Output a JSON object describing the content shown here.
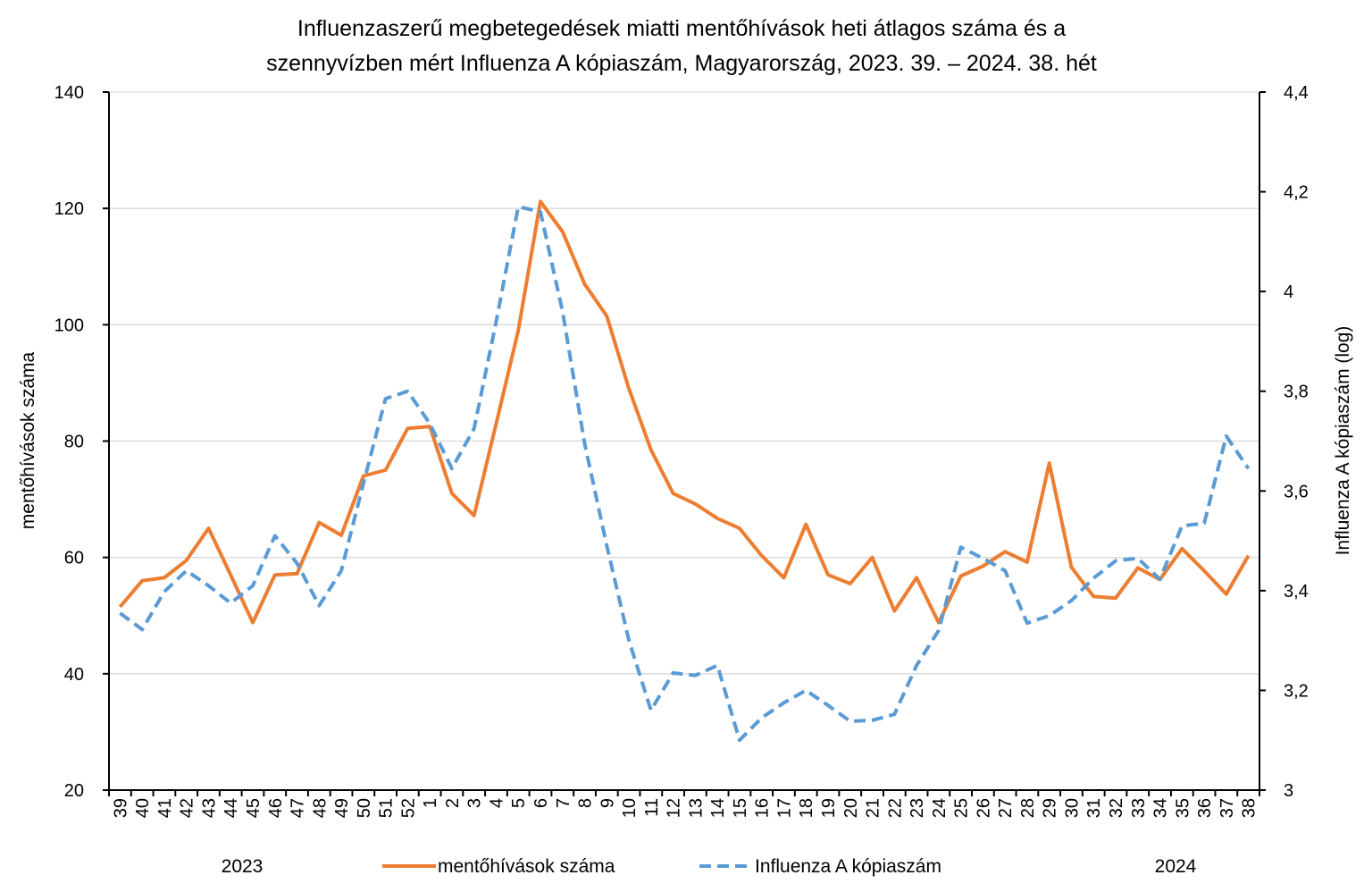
{
  "chart_data": {
    "type": "line",
    "title_line1": "Influenzaszerű megbetegedések miatti mentőhívások heti átlagos száma és a",
    "title_line2": "szennyvízben mért Influenza A kópiaszám, Magyarország, 2023. 39. – 2024. 38. hét",
    "ylabel_left": "mentőhívások száma",
    "ylabel_right": "Influenza A kópiaszám (log)",
    "ylim_left": [
      20,
      140
    ],
    "ylim_right": [
      3,
      4.4
    ],
    "yticks_left": [
      "20",
      "40",
      "60",
      "80",
      "100",
      "120",
      "140"
    ],
    "yticks_right": [
      "3",
      "3,2",
      "3,4",
      "3,6",
      "3,8",
      "4",
      "4,2",
      "4,4"
    ],
    "year_labels": [
      "2023",
      "2024"
    ],
    "categories": [
      "39",
      "40",
      "41",
      "42",
      "43",
      "44",
      "45",
      "46",
      "47",
      "48",
      "49",
      "50",
      "51",
      "52",
      "1",
      "2",
      "3",
      "4",
      "5",
      "6",
      "7",
      "8",
      "9",
      "10",
      "11",
      "12",
      "13",
      "14",
      "15",
      "16",
      "17",
      "18",
      "19",
      "20",
      "21",
      "22",
      "23",
      "24",
      "25",
      "26",
      "27",
      "28",
      "29",
      "30",
      "31",
      "32",
      "33",
      "34",
      "35",
      "36",
      "37",
      "38"
    ],
    "series": [
      {
        "name": "mentőhívások száma",
        "axis": "left",
        "color": "#ed7d31",
        "style": "solid",
        "values": [
          51.5,
          56,
          56.5,
          59.5,
          65,
          57,
          48.8,
          57,
          57.2,
          66,
          63.8,
          74,
          75,
          82.2,
          82.5,
          71,
          67.2,
          83,
          99,
          121.2,
          116,
          107,
          101.5,
          89,
          78.5,
          71,
          69.2,
          66.7,
          65,
          60.3,
          56.5,
          65.7,
          57,
          55.5,
          60,
          50.8,
          56.5,
          48.8,
          56.8,
          58.5,
          61,
          59.2,
          76.2,
          58.3,
          53.3,
          53,
          58.2,
          56.2,
          61.5,
          57.7,
          53.7,
          60.3
        ]
      },
      {
        "name": "Influenza A kópiaszám",
        "axis": "right",
        "color": "#5b9bd5",
        "style": "dashed",
        "values": [
          3.355,
          3.322,
          3.398,
          3.44,
          3.41,
          3.375,
          3.41,
          3.51,
          3.455,
          3.37,
          3.44,
          3.615,
          3.785,
          3.8,
          3.735,
          3.645,
          3.725,
          3.94,
          4.17,
          4.16,
          3.96,
          3.695,
          3.49,
          3.3,
          3.16,
          3.235,
          3.23,
          3.25,
          3.1,
          3.145,
          3.175,
          3.2,
          3.17,
          3.138,
          3.14,
          3.152,
          3.25,
          3.32,
          3.487,
          3.465,
          3.44,
          3.335,
          3.35,
          3.38,
          3.425,
          3.46,
          3.465,
          3.423,
          3.53,
          3.535,
          3.71,
          3.645
        ]
      }
    ]
  }
}
